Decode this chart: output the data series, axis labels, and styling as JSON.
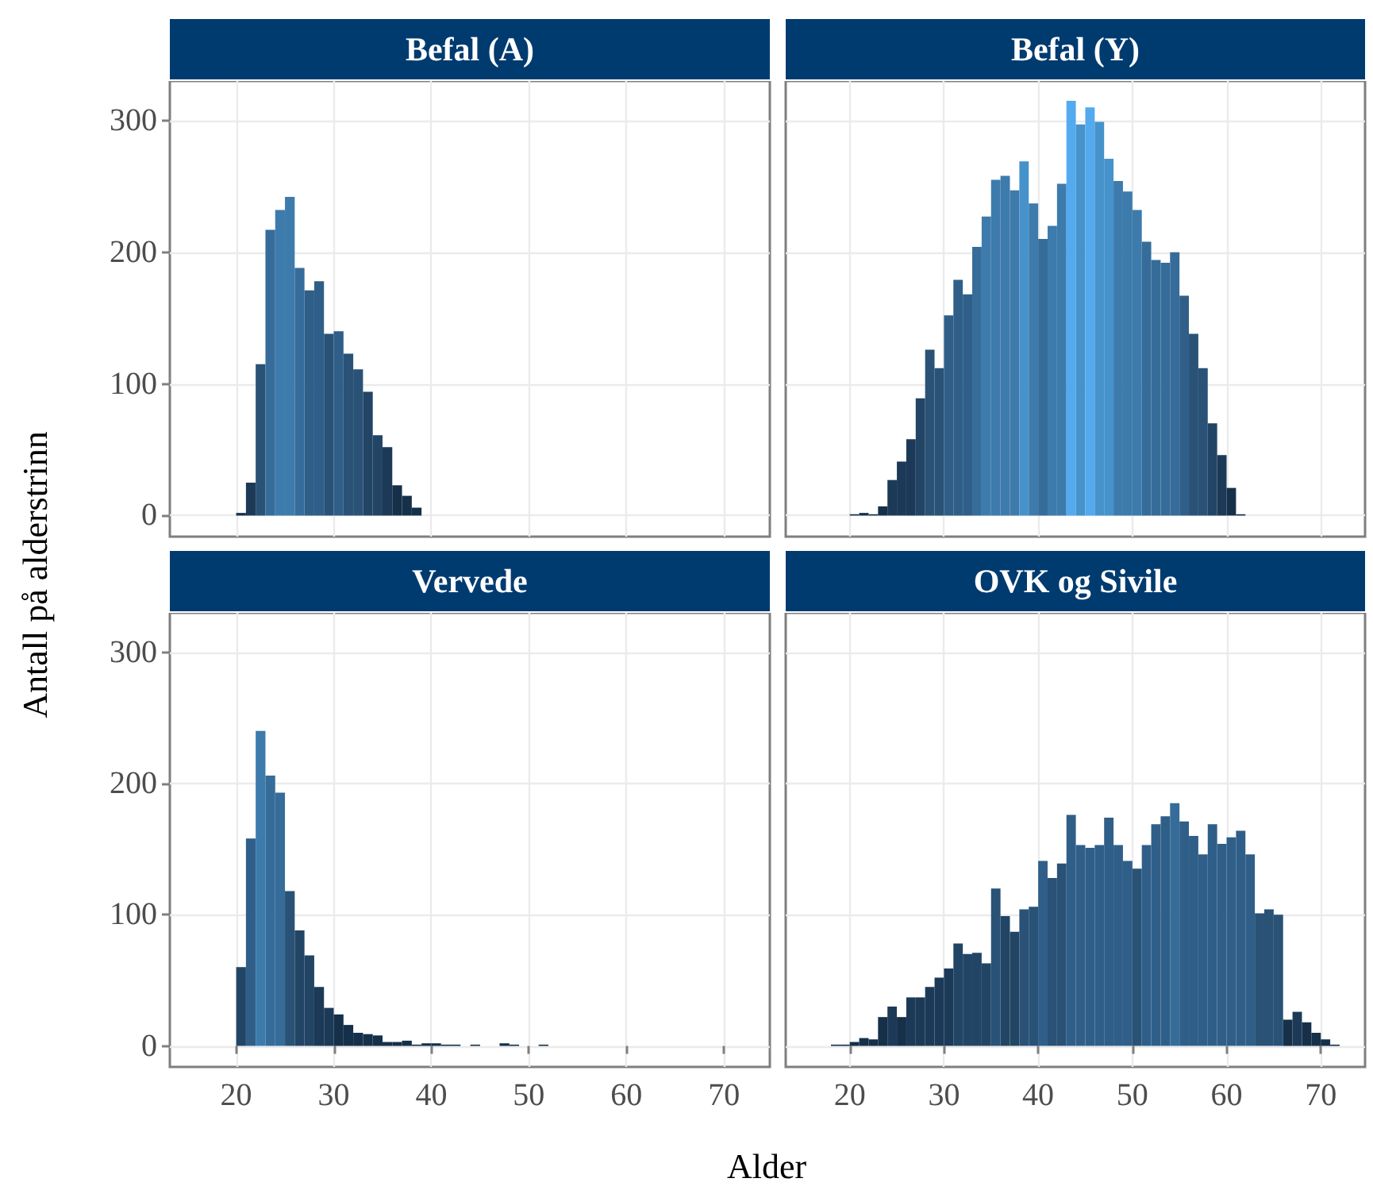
{
  "chart_data": [
    {
      "type": "histogram",
      "title": "Befal (A)",
      "ylabel": "Antall på alderstrinn",
      "tick_labels": "y",
      "grid": true,
      "xlim": [
        13.2,
        74.7
      ],
      "ylim": [
        -16,
        330
      ],
      "xticks": [
        20,
        30,
        40,
        50,
        60,
        70
      ],
      "yticks": [
        0,
        100,
        200,
        300
      ],
      "bins": [
        20,
        21,
        22,
        23,
        24,
        25,
        26,
        27,
        28,
        29,
        30,
        31,
        32,
        33,
        34,
        35,
        36,
        37,
        38,
        39
      ],
      "values": [
        2,
        25,
        115,
        217,
        232,
        242,
        188,
        171,
        178,
        138,
        140,
        123,
        111,
        94,
        61,
        52,
        23,
        15,
        6
      ],
      "colors": [
        "#16304a",
        "#1c3a58",
        "#295276",
        "#366c99",
        "#3d7bac",
        "#3d7bac",
        "#366c99",
        "#2f5f88",
        "#2f5f88",
        "#295276",
        "#2f5f88",
        "#295276",
        "#295276",
        "#224565",
        "#224565",
        "#1c3a58",
        "#16304a",
        "#16304a",
        "#16304a"
      ]
    },
    {
      "type": "histogram",
      "title": "Befal (Y)",
      "tick_labels": false,
      "grid": true,
      "xlim": [
        13.2,
        74.7
      ],
      "ylim": [
        -16,
        330
      ],
      "xticks": [
        20,
        30,
        40,
        50,
        60,
        70
      ],
      "yticks": [
        0,
        100,
        200,
        300
      ],
      "bins": [
        20,
        21,
        22,
        23,
        24,
        25,
        26,
        27,
        28,
        29,
        30,
        31,
        32,
        33,
        34,
        35,
        36,
        37,
        38,
        39,
        40,
        41,
        42,
        43,
        44,
        45,
        46,
        47,
        48,
        49,
        50,
        51,
        52,
        53,
        54,
        55,
        56,
        57,
        58,
        59,
        60,
        61,
        62
      ],
      "values": [
        1,
        2,
        1,
        7,
        27,
        41,
        58,
        89,
        126,
        112,
        152,
        179,
        168,
        204,
        227,
        255,
        258,
        247,
        269,
        237,
        210,
        220,
        252,
        315,
        297,
        310,
        299,
        271,
        254,
        246,
        232,
        208,
        194,
        192,
        200,
        167,
        138,
        112,
        70,
        46,
        21,
        1
      ],
      "colors": [
        "#16304a",
        "#16304a",
        "#16304a",
        "#16304a",
        "#1c3a58",
        "#1c3a58",
        "#1c3a58",
        "#224565",
        "#295276",
        "#295276",
        "#2f5f88",
        "#2f5f88",
        "#2f5f88",
        "#366c99",
        "#3d7bac",
        "#3d7bac",
        "#3d7bac",
        "#3d7bac",
        "#4692cb",
        "#3d7bac",
        "#366c99",
        "#3d7bac",
        "#3d7bac",
        "#53aaef",
        "#4692cb",
        "#53aaef",
        "#4692cb",
        "#4692cb",
        "#3d7bac",
        "#3d7bac",
        "#3d7bac",
        "#366c99",
        "#366c99",
        "#366c99",
        "#366c99",
        "#2f5f88",
        "#295276",
        "#295276",
        "#224565",
        "#1c3a58",
        "#16304a",
        "#16304a"
      ]
    },
    {
      "type": "histogram",
      "title": "Vervede",
      "xlabel": "Alder",
      "grid": true,
      "xlim": [
        13.2,
        74.7
      ],
      "ylim": [
        -16,
        330
      ],
      "xticks": [
        20,
        30,
        40,
        50,
        60,
        70
      ],
      "yticks": [
        0,
        100,
        200,
        300
      ],
      "bins": [
        20,
        21,
        22,
        23,
        24,
        25,
        26,
        27,
        28,
        29,
        30,
        31,
        32,
        33,
        34,
        35,
        36,
        37,
        38,
        39,
        40,
        41,
        42,
        43,
        44,
        45,
        46,
        47,
        48,
        49,
        50,
        51,
        52
      ],
      "values": [
        60,
        158,
        240,
        206,
        193,
        118,
        88,
        69,
        45,
        29,
        24,
        16,
        10,
        9,
        8,
        3,
        3,
        4,
        1,
        2,
        2,
        1,
        1,
        0,
        1,
        0,
        0,
        2,
        1,
        0,
        0,
        1
      ],
      "colors": [
        "#224565",
        "#2f5f88",
        "#3d7bac",
        "#366c99",
        "#366c99",
        "#295276",
        "#224565",
        "#224565",
        "#1c3a58",
        "#1c3a58",
        "#16304a",
        "#16304a",
        "#16304a",
        "#16304a",
        "#16304a",
        "#16304a",
        "#16304a",
        "#16304a",
        "#16304a",
        "#16304a",
        "#16304a",
        "#16304a",
        "#16304a",
        "#16304a",
        "#16304a",
        "#16304a",
        "#16304a",
        "#16304a",
        "#16304a",
        "#16304a",
        "#16304a",
        "#16304a"
      ]
    },
    {
      "type": "histogram",
      "title": "OVK og Sivile",
      "tick_labels": "x",
      "grid": true,
      "xlim": [
        13.2,
        74.7
      ],
      "ylim": [
        -16,
        330
      ],
      "xticks": [
        20,
        30,
        40,
        50,
        60,
        70
      ],
      "yticks": [
        0,
        100,
        200,
        300
      ],
      "bins": [
        18,
        19,
        20,
        21,
        22,
        23,
        24,
        25,
        26,
        27,
        28,
        29,
        30,
        31,
        32,
        33,
        34,
        35,
        36,
        37,
        38,
        39,
        40,
        41,
        42,
        43,
        44,
        45,
        46,
        47,
        48,
        49,
        50,
        51,
        52,
        53,
        54,
        55,
        56,
        57,
        58,
        59,
        60,
        61,
        62,
        63,
        64,
        65,
        66,
        67,
        68,
        69,
        70,
        71,
        72
      ],
      "values": [
        1,
        1,
        3,
        6,
        5,
        22,
        30,
        22,
        37,
        37,
        45,
        52,
        59,
        78,
        70,
        71,
        63,
        120,
        99,
        87,
        104,
        106,
        141,
        128,
        139,
        176,
        153,
        151,
        153,
        174,
        153,
        141,
        135,
        153,
        169,
        175,
        185,
        171,
        160,
        146,
        169,
        154,
        159,
        164,
        146,
        101,
        104,
        100,
        20,
        26,
        18,
        10,
        5,
        1
      ],
      "colors": [
        "#16304a",
        "#16304a",
        "#16304a",
        "#16304a",
        "#16304a",
        "#16304a",
        "#1c3a58",
        "#16304a",
        "#1c3a58",
        "#1c3a58",
        "#1c3a58",
        "#1c3a58",
        "#1c3a58",
        "#224565",
        "#224565",
        "#224565",
        "#224565",
        "#295276",
        "#224565",
        "#224565",
        "#295276",
        "#295276",
        "#2f5f88",
        "#295276",
        "#295276",
        "#2f5f88",
        "#2f5f88",
        "#2f5f88",
        "#2f5f88",
        "#2f5f88",
        "#2f5f88",
        "#2f5f88",
        "#295276",
        "#2f5f88",
        "#2f5f88",
        "#2f5f88",
        "#366c99",
        "#2f5f88",
        "#2f5f88",
        "#2f5f88",
        "#2f5f88",
        "#2f5f88",
        "#2f5f88",
        "#2f5f88",
        "#2f5f88",
        "#295276",
        "#295276",
        "#295276",
        "#16304a",
        "#1c3a58",
        "#16304a",
        "#16304a",
        "#16304a",
        "#16304a"
      ]
    }
  ]
}
